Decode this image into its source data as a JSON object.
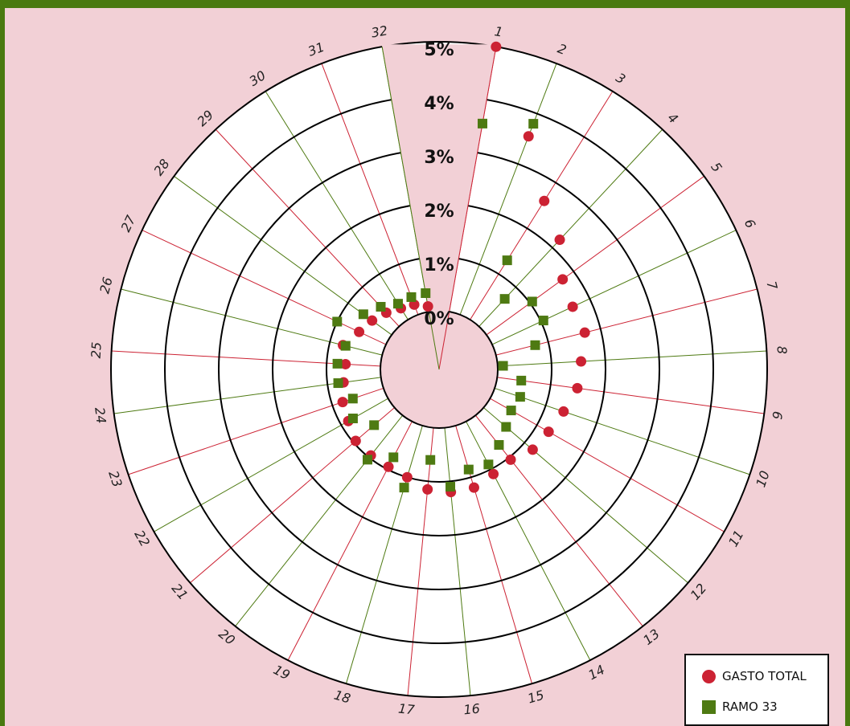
{
  "colors": {
    "background": "#f2d0d6",
    "frame": "#4a7a10",
    "gasto": "#cc2233",
    "ramo": "#4e7a12",
    "ring": "#000000",
    "panel": "#ffffff"
  },
  "chart_data": {
    "type": "scatter",
    "subtype": "radial",
    "categories": [
      "1",
      "2",
      "3",
      "4",
      "5",
      "6",
      "7",
      "8",
      "9",
      "10",
      "11",
      "12",
      "13",
      "14",
      "15",
      "16",
      "17",
      "18",
      "19",
      "20",
      "21",
      "22",
      "23",
      "24",
      "25",
      "26",
      "27",
      "28",
      "29",
      "30",
      "31",
      "32"
    ],
    "radial_ticks": [
      "0%",
      "1%",
      "2%",
      "3%",
      "4%",
      "5%"
    ],
    "rmax": 5,
    "legend_position": "bottom-right",
    "series": [
      {
        "name": "GASTO TOTAL",
        "marker": "circle",
        "values": [
          5.0,
          3.55,
          2.6,
          2.2,
          1.75,
          1.65,
          1.7,
          1.55,
          1.5,
          1.35,
          1.25,
          1.2,
          1.05,
          1.1,
          1.2,
          1.2,
          1.15,
          1.0,
          0.95,
          0.95,
          0.95,
          0.85,
          0.8,
          0.7,
          0.65,
          0.75,
          0.55,
          0.45,
          0.35,
          0.25,
          0.2,
          0.1
        ]
      },
      {
        "name": "RAMO 33",
        "marker": "square",
        "values": [
          3.55,
          3.8,
          1.3,
          0.7,
          1.05,
          1.05,
          0.75,
          0.1,
          0.45,
          0.5,
          0.45,
          0.55,
          0.7,
          0.9,
          0.85,
          1.1,
          0.6,
          1.2,
          0.75,
          1.05,
          0.5,
          0.75,
          0.6,
          0.8,
          0.8,
          0.7,
          1.0,
          0.65,
          0.5,
          0.35,
          0.35,
          0.35
        ]
      }
    ]
  }
}
